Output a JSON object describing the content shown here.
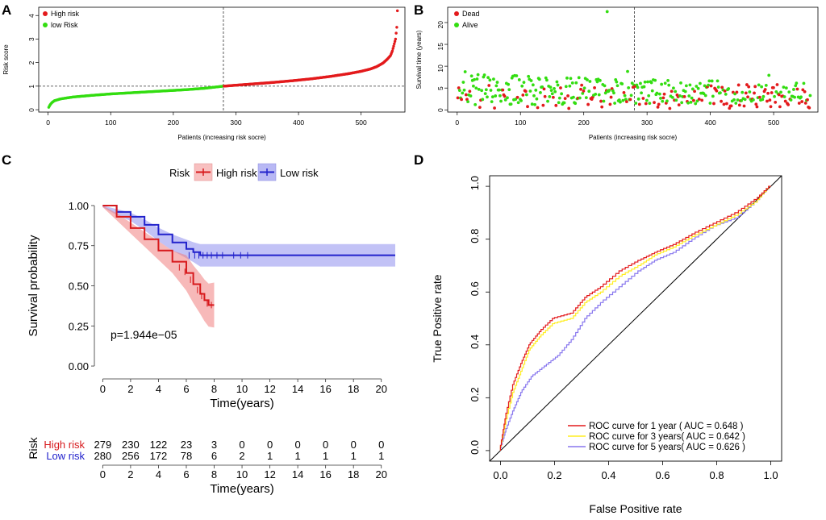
{
  "chart_data": [
    {
      "panel": "A",
      "type": "scatter",
      "xlabel": "Patients (increasing risk socre)",
      "ylabel": "Risk score",
      "xlim": [
        0,
        560
      ],
      "ylim": [
        0,
        4.25
      ],
      "xticks": [
        0,
        100,
        200,
        300,
        400,
        500
      ],
      "yticks": [
        0,
        1,
        2,
        3,
        4
      ],
      "cutoff_x": 280,
      "cutoff_y": 1,
      "legend": [
        {
          "label": "High risk",
          "color": "#e31a1c"
        },
        {
          "label": "low Risk",
          "color": "#33dd11"
        }
      ],
      "series": [
        {
          "name": "low Risk",
          "x": [
            1,
            3,
            6,
            10,
            20,
            40,
            70,
            100,
            140,
            180,
            220,
            250,
            280
          ],
          "y": [
            0.1,
            0.2,
            0.3,
            0.38,
            0.46,
            0.54,
            0.61,
            0.67,
            0.73,
            0.79,
            0.85,
            0.91,
            1.0
          ]
        },
        {
          "name": "High risk",
          "x": [
            281,
            300,
            330,
            360,
            390,
            420,
            450,
            480,
            500,
            515,
            525,
            535,
            542,
            547,
            550,
            553,
            555,
            557,
            558
          ],
          "y": [
            1.0,
            1.04,
            1.1,
            1.16,
            1.23,
            1.31,
            1.41,
            1.53,
            1.63,
            1.73,
            1.83,
            1.98,
            2.15,
            2.3,
            2.5,
            2.8,
            3.0,
            3.5,
            4.2
          ]
        }
      ]
    },
    {
      "panel": "B",
      "type": "scatter",
      "xlabel": "Patients (increasing risk socre)",
      "ylabel": "Survival time (years)",
      "xlim": [
        0,
        560
      ],
      "ylim": [
        0,
        23
      ],
      "xticks": [
        0,
        100,
        200,
        300,
        400,
        500
      ],
      "yticks": [
        0,
        5,
        10,
        15,
        20
      ],
      "cutoff_x": 280,
      "legend": [
        {
          "label": "Dead",
          "color": "#e31a1c"
        },
        {
          "label": "Alive",
          "color": "#33dd11"
        }
      ],
      "outlier": {
        "x": 237,
        "y": 22.5
      }
    },
    {
      "panel": "C",
      "type": "line",
      "title": "Risk",
      "xlabel": "Time(years)",
      "ylabel": "Survival probability",
      "xlim": [
        0,
        21
      ],
      "ylim": [
        0,
        1
      ],
      "xticks": [
        0,
        2,
        4,
        6,
        8,
        10,
        12,
        14,
        16,
        18,
        20
      ],
      "yticks": [
        "0.00",
        "0.25",
        "0.50",
        "0.75",
        "1.00"
      ],
      "pvalue": "p=1.944e−05",
      "series": [
        {
          "name": "High risk",
          "color": "#d7191c",
          "x": [
            0,
            1,
            2,
            3,
            4,
            5,
            6,
            6.5,
            7,
            7.3,
            7.6,
            8
          ],
          "y": [
            1.0,
            0.93,
            0.86,
            0.79,
            0.72,
            0.65,
            0.58,
            0.51,
            0.45,
            0.41,
            0.38,
            0.38
          ]
        },
        {
          "name": "Low risk",
          "color": "#2222cc",
          "x": [
            0,
            1,
            2,
            3,
            4,
            5,
            6,
            6.5,
            7,
            8,
            21
          ],
          "y": [
            1.0,
            0.96,
            0.93,
            0.88,
            0.82,
            0.77,
            0.73,
            0.71,
            0.69,
            0.69,
            0.69
          ]
        }
      ],
      "risk_table": {
        "title": "Risk",
        "xlabel": "Time(years)",
        "times": [
          0,
          2,
          4,
          6,
          8,
          10,
          12,
          14,
          16,
          18,
          20
        ],
        "rows": [
          {
            "label": "High risk",
            "color": "#d7191c",
            "values": [
              279,
              230,
              122,
              23,
              3,
              0,
              0,
              0,
              0,
              0,
              0
            ]
          },
          {
            "label": "Low risk",
            "color": "#2222cc",
            "values": [
              280,
              256,
              172,
              78,
              6,
              2,
              1,
              1,
              1,
              1,
              1
            ]
          }
        ]
      }
    },
    {
      "panel": "D",
      "type": "line",
      "xlabel": "False Positive rate",
      "ylabel": "True Positive rate",
      "xlim": [
        0,
        1
      ],
      "ylim": [
        0,
        1
      ],
      "xticks": [
        "0.0",
        "0.2",
        "0.4",
        "0.6",
        "0.8",
        "1.0"
      ],
      "yticks": [
        "0.0",
        "0.2",
        "0.4",
        "0.6",
        "0.8",
        "1.0"
      ],
      "series": [
        {
          "name": "ROC curve for 1 year",
          "auc": "0.648",
          "color": "#e31a1c",
          "x": [
            0,
            0.02,
            0.05,
            0.08,
            0.11,
            0.15,
            0.2,
            0.27,
            0.32,
            0.38,
            0.45,
            0.52,
            0.58,
            0.65,
            0.72,
            0.8,
            0.88,
            0.95,
            1.0
          ],
          "y": [
            0,
            0.12,
            0.25,
            0.33,
            0.4,
            0.45,
            0.5,
            0.52,
            0.58,
            0.62,
            0.68,
            0.72,
            0.75,
            0.78,
            0.82,
            0.86,
            0.9,
            0.95,
            1.0
          ]
        },
        {
          "name": "ROC curve for 3 years",
          "auc": "0.642",
          "color": "#ffee22",
          "x": [
            0,
            0.02,
            0.05,
            0.08,
            0.11,
            0.15,
            0.2,
            0.27,
            0.32,
            0.38,
            0.45,
            0.52,
            0.58,
            0.65,
            0.72,
            0.8,
            0.88,
            0.95,
            1.0
          ],
          "y": [
            0,
            0.1,
            0.22,
            0.3,
            0.38,
            0.43,
            0.48,
            0.5,
            0.56,
            0.6,
            0.66,
            0.7,
            0.74,
            0.77,
            0.81,
            0.85,
            0.89,
            0.94,
            1.0
          ]
        },
        {
          "name": "ROC curve for 5 years",
          "auc": "0.626",
          "color": "#8877ee",
          "x": [
            0,
            0.02,
            0.05,
            0.08,
            0.12,
            0.17,
            0.22,
            0.27,
            0.32,
            0.38,
            0.45,
            0.52,
            0.58,
            0.65,
            0.72,
            0.8,
            0.88,
            0.95,
            1.0
          ],
          "y": [
            0,
            0.07,
            0.15,
            0.22,
            0.28,
            0.32,
            0.36,
            0.42,
            0.5,
            0.56,
            0.62,
            0.68,
            0.72,
            0.75,
            0.8,
            0.85,
            0.88,
            0.94,
            1.0
          ]
        }
      ]
    }
  ],
  "labels": {
    "panel_a": "A",
    "panel_b": "B",
    "panel_c": "C",
    "panel_d": "D",
    "risk_title": "Risk",
    "high_risk": "High risk",
    "low_risk": "Low risk",
    "legend_a_high": "High risk",
    "legend_a_low": "low Risk",
    "legend_b_dead": "Dead",
    "legend_b_alive": "Alive",
    "auc_prefix_1": "ROC curve for 1 year",
    "auc_prefix_3": "ROC curve for 3 years",
    "auc_prefix_5": "ROC curve for 5 years"
  }
}
